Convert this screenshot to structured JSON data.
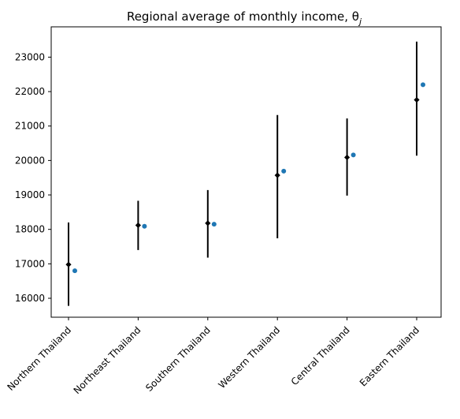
{
  "chart_data": {
    "type": "errorbar",
    "title": "Regional average of monthly income, θ",
    "title_subscript": "j",
    "xlabel": "",
    "ylabel": "",
    "categories": [
      "Northern Thailand",
      "Northeast Thailand",
      "Southern Thailand",
      "Western Thailand",
      "Central Thailand",
      "Eastern Thailand"
    ],
    "ylim": [
      15450,
      23880
    ],
    "yticks": [
      16000,
      17000,
      18000,
      19000,
      20000,
      21000,
      22000,
      23000
    ],
    "grid": false,
    "series": [
      {
        "marker": "diamond",
        "color": "#000000",
        "values": [
          16980,
          18120,
          18180,
          19570,
          20090,
          21760
        ],
        "lower": [
          15780,
          17400,
          17180,
          17740,
          18980,
          20140
        ],
        "upper": [
          18200,
          18830,
          19140,
          21320,
          21220,
          23450
        ]
      },
      {
        "marker": "circle",
        "color": "#1f77b4",
        "values": [
          16800,
          18090,
          18150,
          19690,
          20160,
          22200
        ]
      }
    ]
  }
}
